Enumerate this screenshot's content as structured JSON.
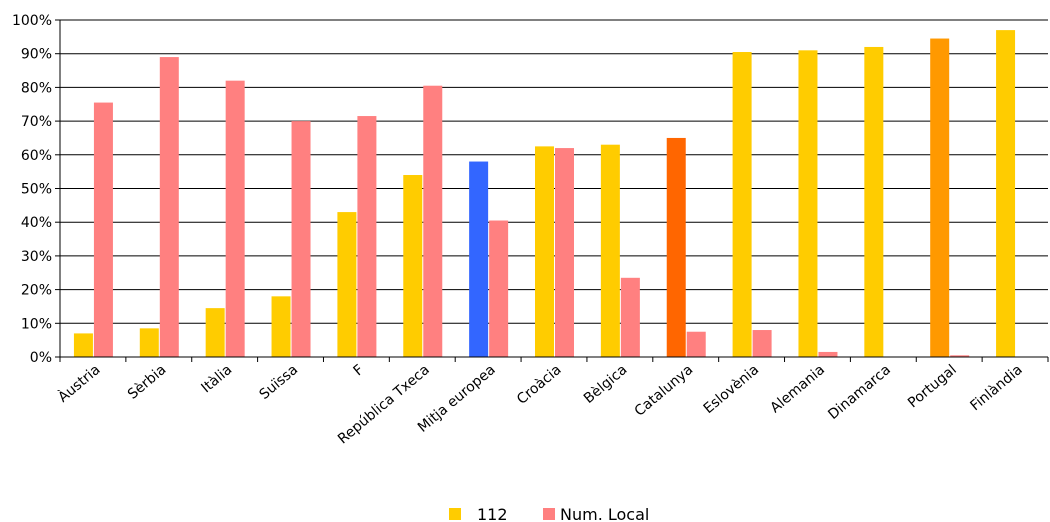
{
  "chart_data": {
    "type": "bar",
    "categories": [
      "Àustria",
      "Sèrbia",
      "Itàlia",
      "Suïssa",
      "F",
      "República Txeca",
      "Mitja europea",
      "Croàcia",
      "Bèlgica",
      "Catalunya",
      "Eslovènia",
      "Alemania",
      "Dinamarca",
      "Portugal",
      "Finlàndia"
    ],
    "series": [
      {
        "name": "112",
        "color": "#ffcc00",
        "values": [
          7,
          8.5,
          14.5,
          18,
          43,
          54,
          58,
          62.5,
          63,
          65,
          90.5,
          91,
          92,
          94.5,
          97
        ]
      },
      {
        "name": "Num. Local",
        "color": "#ff8080",
        "values": [
          75.5,
          89,
          82,
          70,
          71.5,
          80.5,
          40.5,
          62,
          23.5,
          7.5,
          8,
          1.5,
          0,
          0.5,
          0
        ]
      }
    ],
    "highlight_colors": {
      "Mitja europea": "#3366ff",
      "Catalunya": "#ff6600",
      "Portugal": "#ff9900"
    },
    "ylim": [
      0,
      100
    ],
    "yticks": [
      "0%",
      "10%",
      "20%",
      "30%",
      "40%",
      "50%",
      "60%",
      "70%",
      "80%",
      "90%",
      "100%"
    ],
    "grid": true,
    "legend": "bottom"
  }
}
